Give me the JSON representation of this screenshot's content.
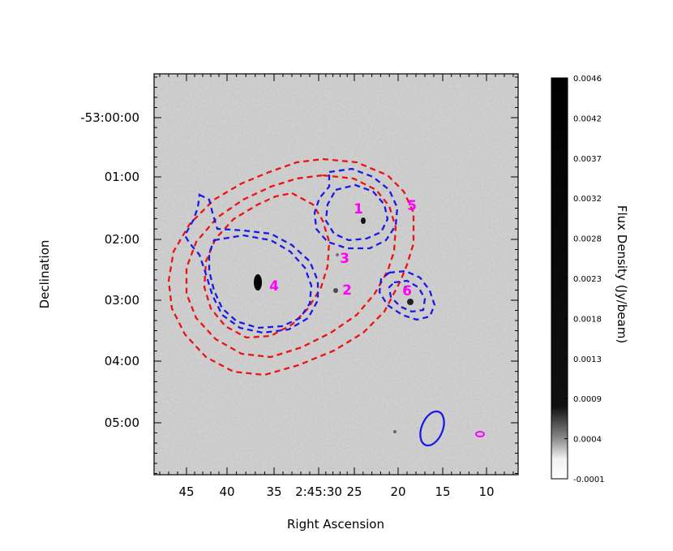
{
  "chart_data": {
    "type": "image",
    "xlabel": "Right Ascension",
    "ylabel": "Declination",
    "x_ticks": [
      "45",
      "40",
      "35",
      "2:45:30",
      "25",
      "20",
      "15",
      "10"
    ],
    "y_ticks": [
      "-53:00:00",
      "01:00",
      "02:00",
      "03:00",
      "04:00",
      "05:00"
    ],
    "colorbar": {
      "label": "Flux Density (Jy/beam)",
      "ticks": [
        "0.0046",
        "0.0042",
        "0.0037",
        "0.0032",
        "0.0028",
        "0.0023",
        "0.0018",
        "0.0013",
        "0.0009",
        "0.0004",
        "-0.0001"
      ],
      "min": -0.0001,
      "max": 0.0046
    },
    "sources": [
      {
        "label": "1"
      },
      {
        "label": "2"
      },
      {
        "label": "3"
      },
      {
        "label": "4"
      },
      {
        "label": "5"
      },
      {
        "label": "6"
      }
    ],
    "contour_colors": {
      "red": "#ee1111",
      "blue": "#1a1ae6"
    },
    "label_color": "#ff00ff",
    "beam_colors": {
      "blue": "#1a1ae6",
      "magenta": "#ff00ff"
    }
  }
}
